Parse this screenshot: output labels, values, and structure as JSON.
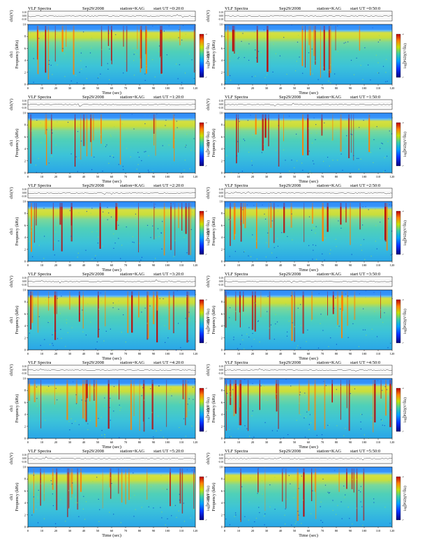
{
  "page": {
    "title": ""
  },
  "common": {
    "header_title": "VLF Spectra",
    "date": "Sep29/2008",
    "station": "station=KAG",
    "start_prefix": "start  UT =",
    "x_label": "Time (sec)",
    "y_label_top": "ch1(V)",
    "y_label_spec_ch": "ch1",
    "y_label_spec_units": "Frequency (kHz)",
    "colorbar_label": "log(PSD)(V²/Hz)",
    "top_ticks": [
      "0.10",
      "0.00",
      "-0.10"
    ],
    "freq_ticks": [
      "0",
      "2",
      "4",
      "6",
      "8",
      "10"
    ],
    "colorbar_ticks": [
      "-4",
      "-5",
      "-6",
      "-7"
    ]
  },
  "colors": {
    "scale_low": "#000080",
    "scale_mid_low": "#00a0ff",
    "scale_mid": "#40d0a0",
    "scale_mid_high": "#c8e000",
    "scale_high": "#ff8000",
    "scale_max": "#c00000"
  },
  "chart_data": [
    {
      "type": "heatmap",
      "start_ut": "0:20:0",
      "x_ticks": [
        "0",
        "10",
        "20",
        "30",
        "40",
        "50",
        "60",
        "70",
        "80",
        "90",
        "100",
        "110",
        "120"
      ],
      "xlim": [
        0,
        120
      ],
      "ylim": [
        0,
        10
      ],
      "y_label": "Frequency (kHz)",
      "x_label": "Time (sec)"
    },
    {
      "type": "heatmap",
      "start_ut": "0:50:0",
      "x_ticks": [
        "0",
        "10",
        "20",
        "30",
        "40",
        "50",
        "60",
        "70",
        "80",
        "90",
        "100",
        "110",
        "120"
      ],
      "xlim": [
        0,
        120
      ],
      "ylim": [
        0,
        10
      ],
      "y_label": "Frequency (kHz)",
      "x_label": "Time (sec)"
    },
    {
      "type": "heatmap",
      "start_ut": "1:20:0",
      "x_ticks": [
        "0",
        "10",
        "20",
        "30",
        "40",
        "50",
        "60",
        "70",
        "80",
        "90",
        "100",
        "110",
        "120"
      ],
      "xlim": [
        0,
        120
      ],
      "ylim": [
        0,
        10
      ],
      "y_label": "Frequency (kHz)",
      "x_label": "Time (sec)"
    },
    {
      "type": "heatmap",
      "start_ut": "1:50:0",
      "x_ticks": [
        "0",
        "10",
        "20",
        "30",
        "40",
        "50",
        "60",
        "70",
        "80",
        "90",
        "100",
        "110",
        "120"
      ],
      "xlim": [
        0,
        120
      ],
      "ylim": [
        0,
        10
      ],
      "y_label": "Frequency (kHz)",
      "x_label": "Time (sec)"
    },
    {
      "type": "heatmap",
      "start_ut": "2:20:0",
      "x_ticks": [
        "0",
        "10",
        "20",
        "30",
        "40",
        "50",
        "60",
        "70",
        "80",
        "90",
        "100",
        "110",
        "120"
      ],
      "xlim": [
        0,
        120
      ],
      "ylim": [
        0,
        10
      ],
      "y_label": "Frequency (kHz)",
      "x_label": "Time (sec)"
    },
    {
      "type": "heatmap",
      "start_ut": "2:50:0",
      "x_ticks": [
        "0",
        "10",
        "20",
        "30",
        "40",
        "50",
        "60",
        "70",
        "80",
        "90",
        "100",
        "110",
        "120"
      ],
      "xlim": [
        0,
        120
      ],
      "ylim": [
        0,
        10
      ],
      "y_label": "Frequency (kHz)",
      "x_label": "Time (sec)"
    },
    {
      "type": "heatmap",
      "start_ut": "3:20:0",
      "x_ticks": [
        "0",
        "10",
        "20",
        "30",
        "40",
        "50",
        "60",
        "70",
        "80",
        "90",
        "100",
        "110",
        "120"
      ],
      "xlim": [
        0,
        120
      ],
      "ylim": [
        0,
        10
      ],
      "y_label": "Frequency (kHz)",
      "x_label": "Time (sec)"
    },
    {
      "type": "heatmap",
      "start_ut": "3:50:0",
      "x_ticks": [
        "0",
        "10",
        "20",
        "30",
        "40",
        "50",
        "60",
        "70",
        "80",
        "90",
        "100",
        "110",
        "120"
      ],
      "xlim": [
        0,
        120
      ],
      "ylim": [
        0,
        10
      ],
      "y_label": "Frequency (kHz)",
      "x_label": "Time (sec)"
    },
    {
      "type": "heatmap",
      "start_ut": "4:20:0",
      "x_ticks": [
        "0",
        "10",
        "20",
        "30",
        "40",
        "50",
        "60",
        "70",
        "80",
        "90",
        "100",
        "110",
        "120"
      ],
      "xlim": [
        0,
        120
      ],
      "ylim": [
        0,
        10
      ],
      "y_label": "Frequency (kHz)",
      "x_label": "Time (sec)"
    },
    {
      "type": "heatmap",
      "start_ut": "4:50:0",
      "x_ticks": [
        "0",
        "10",
        "20",
        "30",
        "40",
        "50",
        "60",
        "70",
        "80",
        "90",
        "100",
        "110",
        "120"
      ],
      "xlim": [
        0,
        120
      ],
      "ylim": [
        0,
        10
      ],
      "y_label": "Frequency (kHz)",
      "x_label": "Time (sec)"
    },
    {
      "type": "heatmap",
      "start_ut": "5:20:0",
      "x_ticks": [
        "0",
        "10",
        "20",
        "30",
        "40",
        "50",
        "60",
        "70",
        "80",
        "90",
        "100",
        "110",
        "120"
      ],
      "xlim": [
        0,
        120
      ],
      "ylim": [
        0,
        10
      ],
      "y_label": "Frequency (kHz)",
      "x_label": "Time (sec)"
    },
    {
      "type": "heatmap",
      "start_ut": "5:50:0",
      "x_ticks": [
        "0",
        "10",
        "20",
        "30",
        "40",
        "50",
        "60",
        "70",
        "80",
        "90",
        "100",
        "110",
        "120"
      ],
      "xlim": [
        0,
        120
      ],
      "ylim": [
        0,
        10
      ],
      "y_label": "Frequency (kHz)",
      "x_label": "Time (sec)"
    }
  ]
}
